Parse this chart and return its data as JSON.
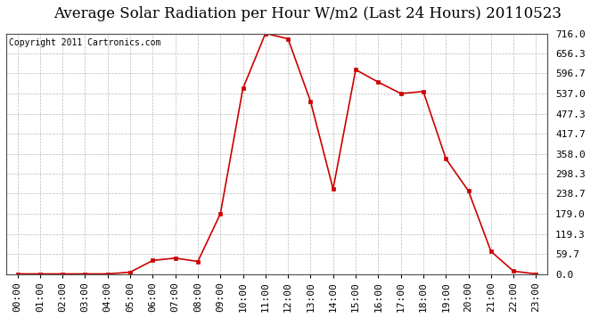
{
  "title": "Average Solar Radiation per Hour W/m2 (Last 24 Hours) 20110523",
  "copyright": "Copyright 2011 Cartronics.com",
  "x_labels": [
    "00:00",
    "01:00",
    "02:00",
    "03:00",
    "04:00",
    "05:00",
    "06:00",
    "07:00",
    "08:00",
    "09:00",
    "10:00",
    "11:00",
    "12:00",
    "13:00",
    "14:00",
    "15:00",
    "16:00",
    "17:00",
    "18:00",
    "19:00",
    "20:00",
    "21:00",
    "22:00",
    "23:00"
  ],
  "y_values": [
    0.0,
    0.0,
    0.0,
    0.0,
    0.0,
    5.0,
    40.0,
    47.0,
    37.0,
    179.0,
    552.0,
    716.0,
    700.0,
    513.0,
    253.0,
    608.0,
    571.0,
    537.0,
    543.0,
    343.0,
    247.0,
    67.0,
    8.0,
    0.0
  ],
  "line_color": "#cc0000",
  "marker": "s",
  "marker_size": 3,
  "background_color": "#ffffff",
  "grid_color": "#bbbbbb",
  "title_fontsize": 12,
  "copyright_fontsize": 7,
  "tick_fontsize": 8,
  "ymin": 0.0,
  "ymax": 716.0,
  "yticks": [
    0.0,
    59.7,
    119.3,
    179.0,
    238.7,
    298.3,
    358.0,
    417.7,
    477.3,
    537.0,
    596.7,
    656.3,
    716.0
  ],
  "ytick_labels": [
    "0.0",
    "59.7",
    "119.3",
    "179.0",
    "238.7",
    "298.3",
    "358.0",
    "417.7",
    "477.3",
    "537.0",
    "596.7",
    "656.3",
    "716.0"
  ]
}
